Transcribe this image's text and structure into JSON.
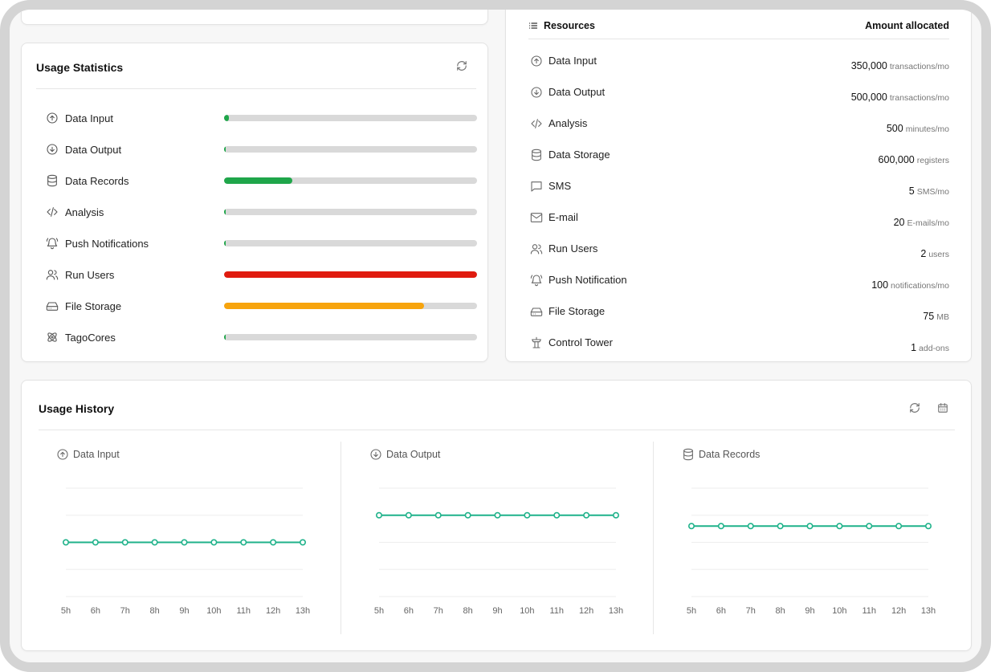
{
  "usage_statistics": {
    "title": "Usage Statistics",
    "items": [
      {
        "label": "Data Input",
        "icon": "upload-circle-icon",
        "fraction": 0.018,
        "color": "#1fa64a"
      },
      {
        "label": "Data Output",
        "icon": "download-circle-icon",
        "fraction": 0.006,
        "color": "#1fa64a"
      },
      {
        "label": "Data Records",
        "icon": "database-icon",
        "fraction": 0.27,
        "color": "#1fa64a"
      },
      {
        "label": "Analysis",
        "icon": "code-icon",
        "fraction": 0.006,
        "color": "#1fa64a"
      },
      {
        "label": "Push Notifications",
        "icon": "bell-icon",
        "fraction": 0.006,
        "color": "#1fa64a"
      },
      {
        "label": "Run Users",
        "icon": "users-icon",
        "fraction": 1.0,
        "color": "#e01b0f"
      },
      {
        "label": "File Storage",
        "icon": "hard-drive-icon",
        "fraction": 0.79,
        "color": "#f7a40d"
      },
      {
        "label": "TagoCores",
        "icon": "atom-icon",
        "fraction": 0.006,
        "color": "#1fa64a"
      }
    ]
  },
  "resources": {
    "header_left": "Resources",
    "header_right": "Amount allocated",
    "items": [
      {
        "label": "Data Input",
        "icon": "upload-circle-icon",
        "amount": "350,000",
        "unit": "transactions/mo"
      },
      {
        "label": "Data Output",
        "icon": "download-circle-icon",
        "amount": "500,000",
        "unit": "transactions/mo"
      },
      {
        "label": "Analysis",
        "icon": "code-icon",
        "amount": "500",
        "unit": "minutes/mo"
      },
      {
        "label": "Data Storage",
        "icon": "database-icon",
        "amount": "600,000",
        "unit": "registers"
      },
      {
        "label": "SMS",
        "icon": "message-icon",
        "amount": "5",
        "unit": "SMS/mo"
      },
      {
        "label": "E-mail",
        "icon": "mail-icon",
        "amount": "20",
        "unit": "E-mails/mo"
      },
      {
        "label": "Run Users",
        "icon": "users-icon",
        "amount": "2",
        "unit": "users"
      },
      {
        "label": "Push Notification",
        "icon": "bell-icon",
        "amount": "100",
        "unit": "notifications/mo"
      },
      {
        "label": "File Storage",
        "icon": "hard-drive-icon",
        "amount": "75",
        "unit": "MB"
      },
      {
        "label": "Control Tower",
        "icon": "tower-icon",
        "amount": "1",
        "unit": "add-ons"
      }
    ]
  },
  "usage_history": {
    "title": "Usage History"
  },
  "chart_data": [
    {
      "type": "line",
      "title": "Data Input",
      "icon": "upload-circle-icon",
      "x": [
        "5h",
        "6h",
        "7h",
        "8h",
        "9h",
        "10h",
        "11h",
        "12h",
        "13h"
      ],
      "series": [
        {
          "values": [
            0,
            0,
            0,
            0,
            0,
            0,
            0,
            0,
            0
          ]
        }
      ],
      "ylim": [
        -2,
        2
      ],
      "color": "#1fb28a",
      "grid": true
    },
    {
      "type": "line",
      "title": "Data Output",
      "icon": "download-circle-icon",
      "x": [
        "5h",
        "6h",
        "7h",
        "8h",
        "9h",
        "10h",
        "11h",
        "12h",
        "13h"
      ],
      "series": [
        {
          "values": [
            1,
            1,
            1,
            1,
            1,
            1,
            1,
            1,
            1
          ]
        }
      ],
      "ylim": [
        -2,
        2
      ],
      "color": "#1fb28a",
      "grid": true
    },
    {
      "type": "line",
      "title": "Data Records",
      "icon": "database-icon",
      "x": [
        "5h",
        "6h",
        "7h",
        "8h",
        "9h",
        "10h",
        "11h",
        "12h",
        "13h"
      ],
      "series": [
        {
          "values": [
            0.6,
            0.6,
            0.6,
            0.6,
            0.6,
            0.6,
            0.6,
            0.6,
            0.6
          ]
        }
      ],
      "ylim": [
        -2,
        2
      ],
      "color": "#1fb28a",
      "grid": true
    }
  ]
}
